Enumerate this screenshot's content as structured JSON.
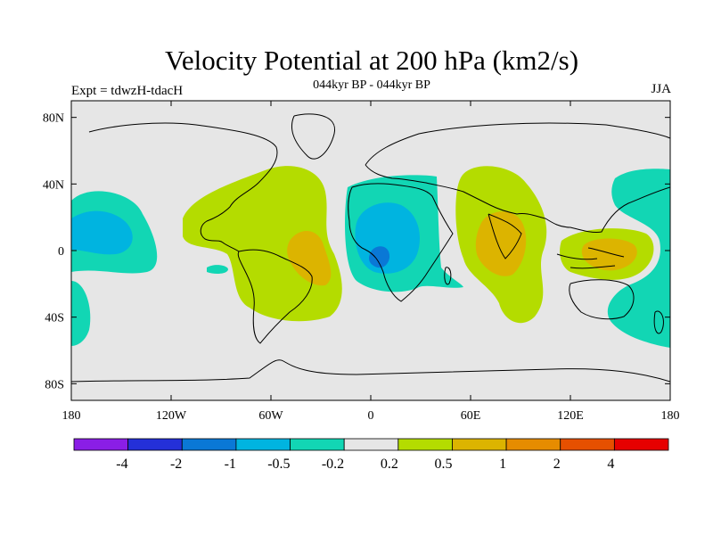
{
  "title": "Velocity Potential at 200 hPa (km2/s)",
  "subtitle": "044kyr BP - 044kyr BP",
  "left_label": "Expt = tdwzH-tdacH",
  "right_label": "JJA",
  "map": {
    "lon_range": [
      -180,
      180
    ],
    "lat_range": [
      -90,
      90
    ],
    "x_ticks": [
      {
        "value": -180,
        "label": "180"
      },
      {
        "value": -120,
        "label": "120W"
      },
      {
        "value": -60,
        "label": "60W"
      },
      {
        "value": 0,
        "label": "0"
      },
      {
        "value": 60,
        "label": "60E"
      },
      {
        "value": 120,
        "label": "120E"
      },
      {
        "value": 180,
        "label": "180"
      }
    ],
    "y_ticks": [
      {
        "value": 80,
        "label": "80N"
      },
      {
        "value": 40,
        "label": "40N"
      },
      {
        "value": 0,
        "label": "0"
      },
      {
        "value": -40,
        "label": "40S"
      },
      {
        "value": -80,
        "label": "80S"
      }
    ],
    "background_color": "#e6e6e6"
  },
  "colorbar": {
    "levels": [
      "-4",
      "-2",
      "-1",
      "-0.5",
      "-0.2",
      "0.2",
      "0.5",
      "1",
      "2",
      "4"
    ],
    "colors": [
      "#8a1ee6",
      "#2430d8",
      "#0a78d6",
      "#00b4e0",
      "#12d6b4",
      "#e6e6e6",
      "#b4dc00",
      "#dcb400",
      "#e68c00",
      "#e65000",
      "#e60000"
    ]
  }
}
